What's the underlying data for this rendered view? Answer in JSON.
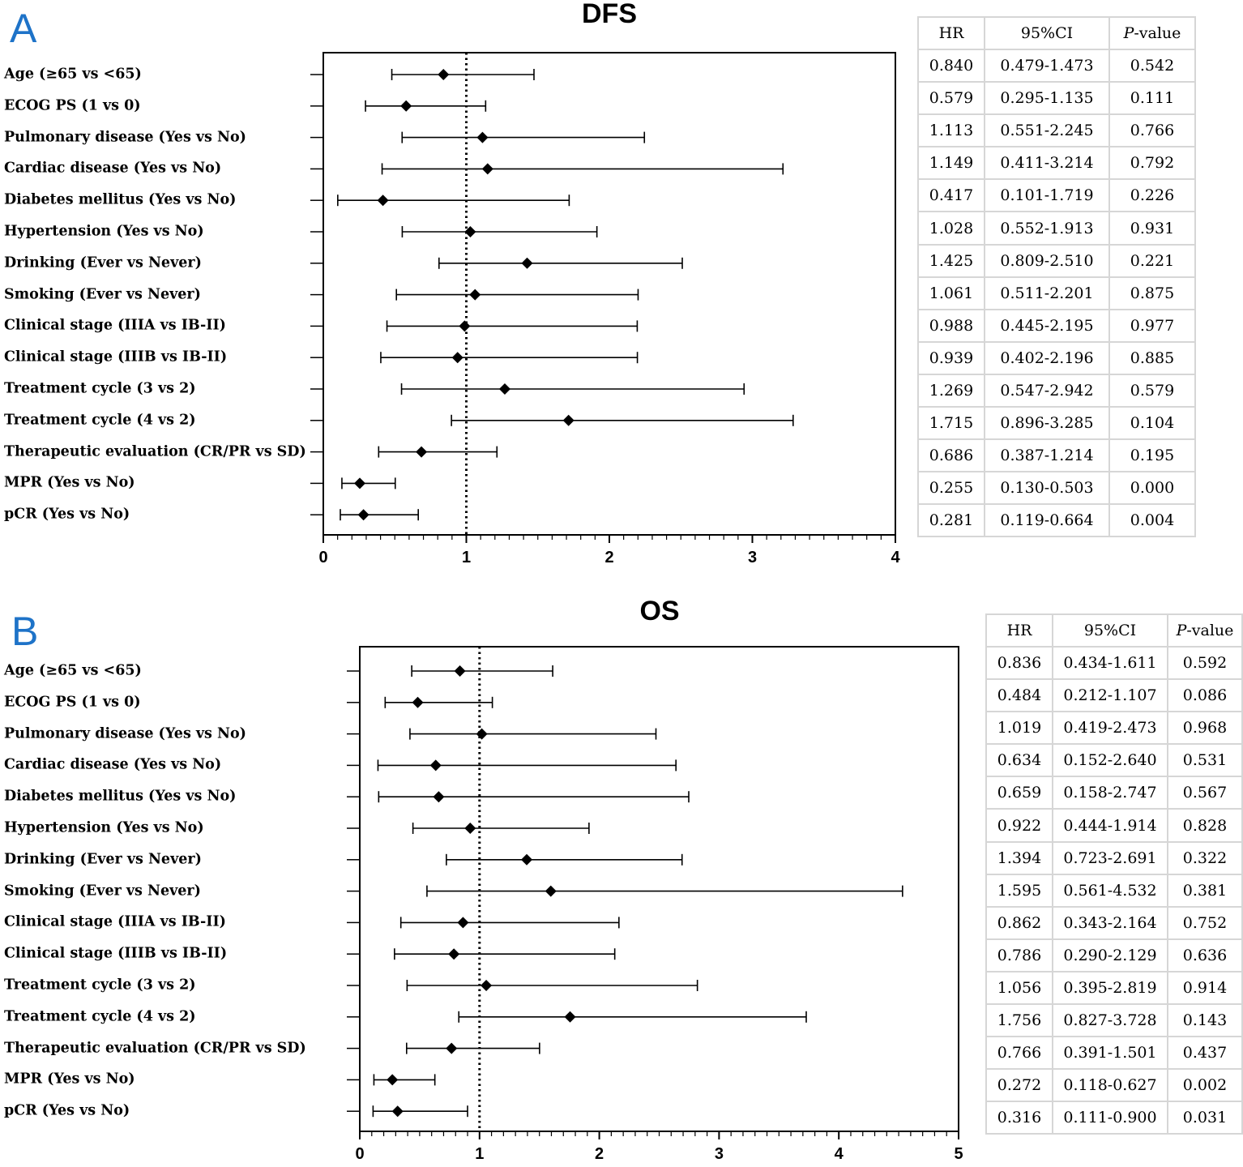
{
  "panels": [
    {
      "letter": "A",
      "chart_data": {
        "type": "scatter",
        "title": "DFS",
        "xlim": [
          0,
          4
        ],
        "xticks": [
          0,
          1,
          2,
          3,
          4
        ],
        "reference_line": 1,
        "grid": false,
        "table_headers": [
          "HR",
          "95%CI",
          "-value"
        ],
        "table_header_italic_prefix": "P",
        "rows": [
          {
            "label": "Age (≥65 vs <65)",
            "hr": 0.84,
            "lo": 0.479,
            "hi": 1.473,
            "hr_text": "0.840",
            "ci_text": "0.479-1.473",
            "p_text": "0.542"
          },
          {
            "label": "ECOG PS (1 vs 0)",
            "hr": 0.579,
            "lo": 0.295,
            "hi": 1.135,
            "hr_text": "0.579",
            "ci_text": "0.295-1.135",
            "p_text": "0.111"
          },
          {
            "label": "Pulmonary disease (Yes vs No)",
            "hr": 1.113,
            "lo": 0.551,
            "hi": 2.245,
            "hr_text": "1.113",
            "ci_text": "0.551-2.245",
            "p_text": "0.766"
          },
          {
            "label": "Cardiac disease (Yes vs No)",
            "hr": 1.149,
            "lo": 0.411,
            "hi": 3.214,
            "hr_text": "1.149",
            "ci_text": "0.411-3.214",
            "p_text": "0.792"
          },
          {
            "label": "Diabetes mellitus (Yes vs No)",
            "hr": 0.417,
            "lo": 0.101,
            "hi": 1.719,
            "hr_text": "0.417",
            "ci_text": "0.101-1.719",
            "p_text": "0.226"
          },
          {
            "label": "Hypertension (Yes vs No)",
            "hr": 1.028,
            "lo": 0.552,
            "hi": 1.913,
            "hr_text": "1.028",
            "ci_text": "0.552-1.913",
            "p_text": "0.931"
          },
          {
            "label": "Drinking (Ever vs Never)",
            "hr": 1.425,
            "lo": 0.809,
            "hi": 2.51,
            "hr_text": "1.425",
            "ci_text": "0.809-2.510",
            "p_text": "0.221"
          },
          {
            "label": "Smoking (Ever vs Never)",
            "hr": 1.061,
            "lo": 0.511,
            "hi": 2.201,
            "hr_text": "1.061",
            "ci_text": "0.511-2.201",
            "p_text": "0.875"
          },
          {
            "label": "Clinical stage (IIIA vs IB-II)",
            "hr": 0.988,
            "lo": 0.445,
            "hi": 2.195,
            "hr_text": "0.988",
            "ci_text": "0.445-2.195",
            "p_text": "0.977"
          },
          {
            "label": "Clinical stage (IIIB vs IB-II)",
            "hr": 0.939,
            "lo": 0.402,
            "hi": 2.196,
            "hr_text": "0.939",
            "ci_text": "0.402-2.196",
            "p_text": "0.885"
          },
          {
            "label": "Treatment cycle (3 vs 2)",
            "hr": 1.269,
            "lo": 0.547,
            "hi": 2.942,
            "hr_text": "1.269",
            "ci_text": "0.547-2.942",
            "p_text": "0.579"
          },
          {
            "label": "Treatment cycle (4 vs 2)",
            "hr": 1.715,
            "lo": 0.896,
            "hi": 3.285,
            "hr_text": "1.715",
            "ci_text": "0.896-3.285",
            "p_text": "0.104"
          },
          {
            "label": "Therapeutic evaluation (CR/PR vs SD)",
            "hr": 0.686,
            "lo": 0.387,
            "hi": 1.214,
            "hr_text": "0.686",
            "ci_text": "0.387-1.214",
            "p_text": "0.195"
          },
          {
            "label": "MPR (Yes vs No)",
            "hr": 0.255,
            "lo": 0.13,
            "hi": 0.503,
            "hr_text": "0.255",
            "ci_text": "0.130-0.503",
            "p_text": "0.000"
          },
          {
            "label": "pCR (Yes vs No)",
            "hr": 0.281,
            "lo": 0.119,
            "hi": 0.664,
            "hr_text": "0.281",
            "ci_text": "0.119-0.664",
            "p_text": "0.004"
          }
        ]
      }
    },
    {
      "letter": "B",
      "chart_data": {
        "type": "scatter",
        "title": "OS",
        "xlim": [
          0,
          5
        ],
        "xticks": [
          0,
          1,
          2,
          3,
          4,
          5
        ],
        "reference_line": 1,
        "grid": false,
        "table_headers": [
          "HR",
          "95%CI",
          "-value"
        ],
        "table_header_italic_prefix": "P",
        "rows": [
          {
            "label": "Age (≥65 vs <65)",
            "hr": 0.836,
            "lo": 0.434,
            "hi": 1.611,
            "hr_text": "0.836",
            "ci_text": "0.434-1.611",
            "p_text": "0.592"
          },
          {
            "label": "ECOG PS (1 vs 0)",
            "hr": 0.484,
            "lo": 0.212,
            "hi": 1.107,
            "hr_text": "0.484",
            "ci_text": "0.212-1.107",
            "p_text": "0.086"
          },
          {
            "label": "Pulmonary disease (Yes vs No)",
            "hr": 1.019,
            "lo": 0.419,
            "hi": 2.473,
            "hr_text": "1.019",
            "ci_text": "0.419-2.473",
            "p_text": "0.968"
          },
          {
            "label": "Cardiac disease (Yes vs No)",
            "hr": 0.634,
            "lo": 0.152,
            "hi": 2.64,
            "hr_text": "0.634",
            "ci_text": "0.152-2.640",
            "p_text": "0.531"
          },
          {
            "label": "Diabetes mellitus (Yes vs No)",
            "hr": 0.659,
            "lo": 0.158,
            "hi": 2.747,
            "hr_text": "0.659",
            "ci_text": "0.158-2.747",
            "p_text": "0.567"
          },
          {
            "label": "Hypertension (Yes vs No)",
            "hr": 0.922,
            "lo": 0.444,
            "hi": 1.914,
            "hr_text": "0.922",
            "ci_text": "0.444-1.914",
            "p_text": "0.828"
          },
          {
            "label": "Drinking (Ever vs Never)",
            "hr": 1.394,
            "lo": 0.723,
            "hi": 2.691,
            "hr_text": "1.394",
            "ci_text": "0.723-2.691",
            "p_text": "0.322"
          },
          {
            "label": "Smoking (Ever vs Never)",
            "hr": 1.595,
            "lo": 0.561,
            "hi": 4.532,
            "hr_text": "1.595",
            "ci_text": "0.561-4.532",
            "p_text": "0.381"
          },
          {
            "label": "Clinical stage (IIIA vs IB-II)",
            "hr": 0.862,
            "lo": 0.343,
            "hi": 2.164,
            "hr_text": "0.862",
            "ci_text": "0.343-2.164",
            "p_text": "0.752"
          },
          {
            "label": "Clinical stage (IIIB vs IB-II)",
            "hr": 0.786,
            "lo": 0.29,
            "hi": 2.129,
            "hr_text": "0.786",
            "ci_text": "0.290-2.129",
            "p_text": "0.636"
          },
          {
            "label": "Treatment cycle (3 vs 2)",
            "hr": 1.056,
            "lo": 0.395,
            "hi": 2.819,
            "hr_text": "1.056",
            "ci_text": "0.395-2.819",
            "p_text": "0.914"
          },
          {
            "label": "Treatment cycle (4 vs 2)",
            "hr": 1.756,
            "lo": 0.827,
            "hi": 3.728,
            "hr_text": "1.756",
            "ci_text": "0.827-3.728",
            "p_text": "0.143"
          },
          {
            "label": "Therapeutic evaluation (CR/PR vs SD)",
            "hr": 0.766,
            "lo": 0.391,
            "hi": 1.501,
            "hr_text": "0.766",
            "ci_text": "0.391-1.501",
            "p_text": "0.437"
          },
          {
            "label": "MPR (Yes vs No)",
            "hr": 0.272,
            "lo": 0.118,
            "hi": 0.627,
            "hr_text": "0.272",
            "ci_text": "0.118-0.627",
            "p_text": "0.002"
          },
          {
            "label": "pCR (Yes vs No)",
            "hr": 0.316,
            "lo": 0.111,
            "hi": 0.9,
            "hr_text": "0.316",
            "ci_text": "0.111-0.900",
            "p_text": "0.031"
          }
        ]
      }
    }
  ]
}
